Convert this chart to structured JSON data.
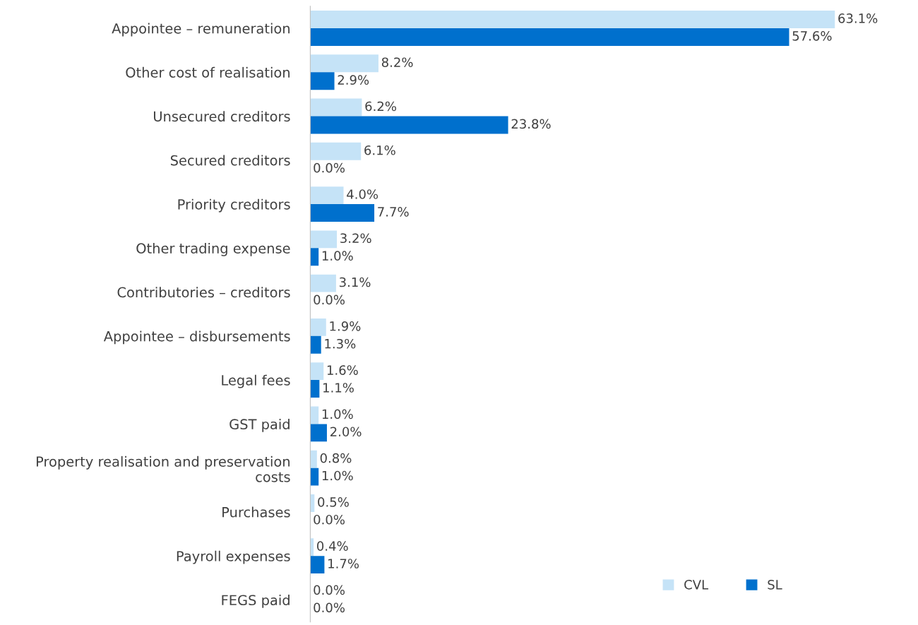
{
  "chart_data": {
    "type": "bar",
    "orientation": "horizontal",
    "categories": [
      "Appointee – remuneration",
      "Other cost of realisation",
      "Unsecured creditors",
      "Secured creditors",
      "Priority creditors",
      "Other trading expense",
      "Contributories – creditors",
      "Appointee – disbursements",
      "Legal fees",
      "GST paid",
      "Property realisation and preservation\ncosts",
      "Purchases",
      "Payroll expenses",
      "FEGS paid"
    ],
    "series": [
      {
        "name": "CVL",
        "color": "#c5e3f7",
        "values": [
          63.1,
          8.2,
          6.2,
          6.1,
          4.0,
          3.2,
          3.1,
          1.9,
          1.6,
          1.0,
          0.8,
          0.5,
          0.4,
          0.0
        ],
        "value_labels": [
          "63.1%",
          "8.2%",
          "6.2%",
          "6.1%",
          "4.0%",
          "3.2%",
          "3.1%",
          "1.9%",
          "1.6%",
          "1.0%",
          "0.8%",
          "0.5%",
          "0.4%",
          "0.0%"
        ]
      },
      {
        "name": "SL",
        "color": "#0070cd",
        "values": [
          57.6,
          2.9,
          23.8,
          0.0,
          7.7,
          1.0,
          0.0,
          1.3,
          1.1,
          2.0,
          1.0,
          0.0,
          1.7,
          0.0
        ],
        "value_labels": [
          "57.6%",
          "2.9%",
          "23.8%",
          "0.0%",
          "7.7%",
          "1.0%",
          "0.0%",
          "1.3%",
          "1.1%",
          "2.0%",
          "1.0%",
          "0.0%",
          "1.7%",
          "0.0%"
        ]
      }
    ],
    "legend": "bottom right",
    "grid": false,
    "tick_labels": "y"
  }
}
